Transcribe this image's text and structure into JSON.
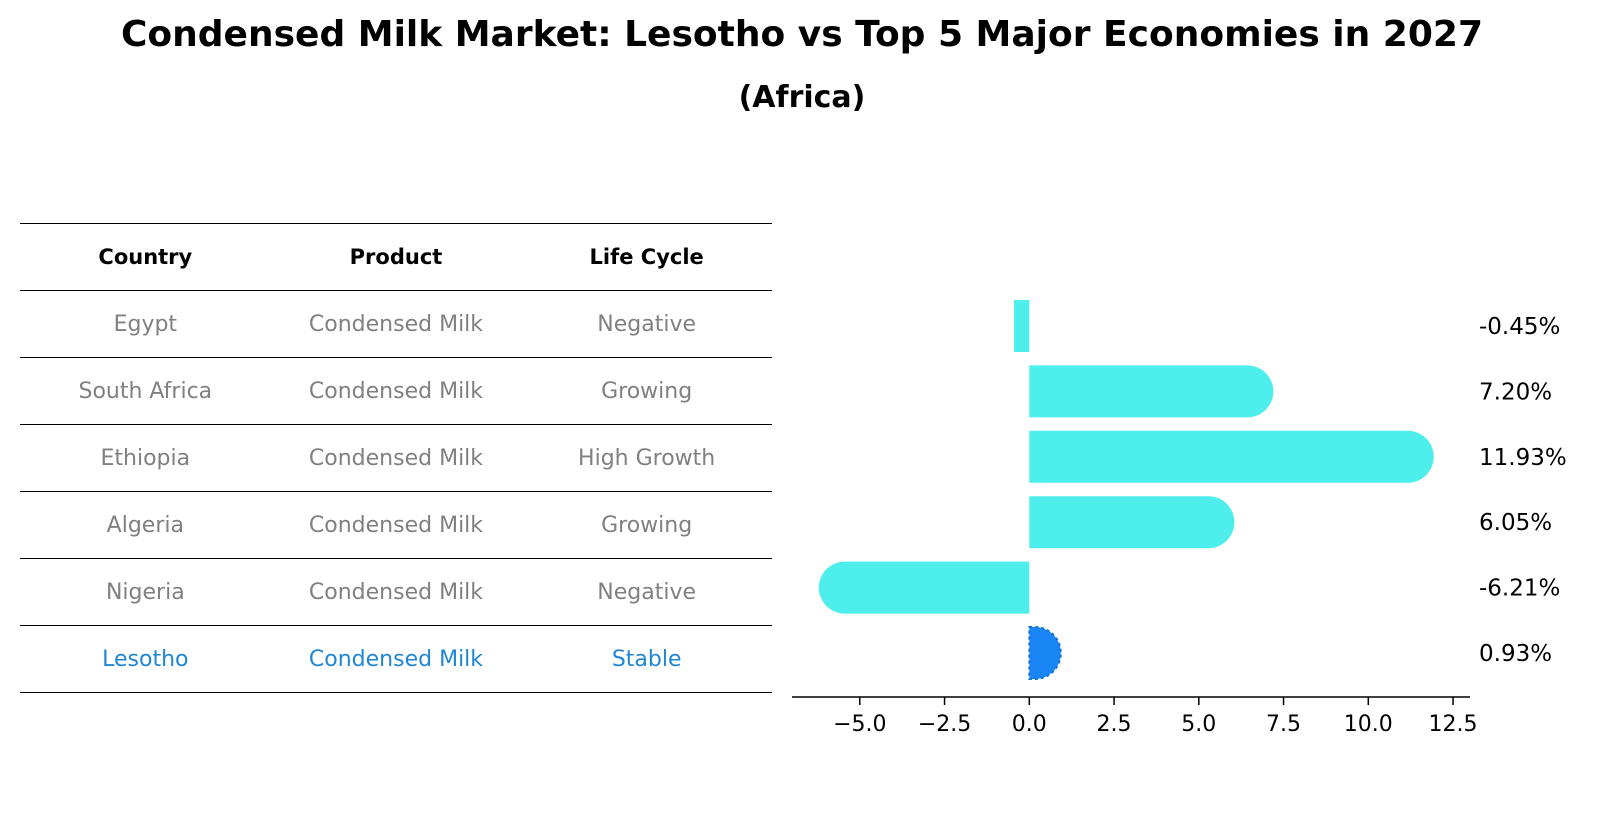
{
  "title": "Condensed Milk Market: Lesotho vs Top 5 Major Economies in 2027",
  "subtitle": "(Africa)",
  "table": {
    "headers": [
      "Country",
      "Product",
      "Life Cycle"
    ],
    "rows": [
      {
        "country": "Egypt",
        "product": "Condensed Milk",
        "life_cycle": "Negative"
      },
      {
        "country": "South Africa",
        "product": "Condensed Milk",
        "life_cycle": "Growing"
      },
      {
        "country": "Ethiopia",
        "product": "Condensed Milk",
        "life_cycle": "High Growth"
      },
      {
        "country": "Algeria",
        "product": "Condensed Milk",
        "life_cycle": "Growing"
      },
      {
        "country": "Nigeria",
        "product": "Condensed Milk",
        "life_cycle": "Negative"
      },
      {
        "country": "Lesotho",
        "product": "Condensed Milk",
        "life_cycle": "Stable"
      }
    ],
    "highlight_color": "#1f86d6",
    "text_color": "#808080"
  },
  "chart_data": {
    "type": "bar",
    "orientation": "horizontal",
    "categories": [
      "Egypt",
      "South Africa",
      "Ethiopia",
      "Algeria",
      "Nigeria",
      "Lesotho"
    ],
    "values": [
      -0.45,
      7.2,
      11.93,
      6.05,
      -6.21,
      0.93
    ],
    "value_labels": [
      "-0.45%",
      "7.20%",
      "11.93%",
      "6.05%",
      "-6.21%",
      "0.93%"
    ],
    "xlim": [
      -7.0,
      13.0
    ],
    "xticks": [
      -5.0,
      -2.5,
      0.0,
      2.5,
      5.0,
      7.5,
      10.0,
      12.5
    ],
    "xtick_labels": [
      "−5.0",
      "−2.5",
      "0.0",
      "2.5",
      "5.0",
      "7.5",
      "10.0",
      "12.5"
    ],
    "bar_color": "#4deeec",
    "highlight_color": "#1a86f5",
    "highlight_category": "Lesotho",
    "xlabel": "",
    "ylabel": "",
    "grid": false
  }
}
